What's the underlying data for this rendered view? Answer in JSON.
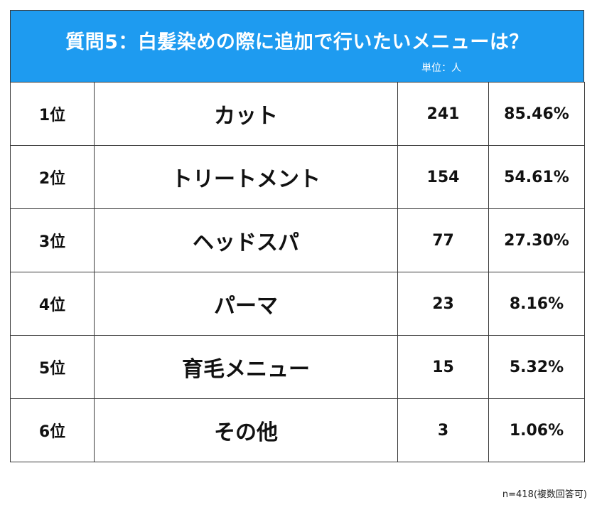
{
  "header": {
    "title": "質問5：白髪染めの際に追加で行いたいメニューは？",
    "unit": "単位：人"
  },
  "chart_data": {
    "type": "table",
    "title": "質問5：白髪染めの際に追加で行いたいメニューは？",
    "unit": "単位：人",
    "rows": [
      {
        "rank": "1位",
        "name": "カット",
        "count": "241",
        "percent": "85.46%"
      },
      {
        "rank": "2位",
        "name": "トリートメント",
        "count": "154",
        "percent": "54.61%"
      },
      {
        "rank": "3位",
        "name": "ヘッドスパ",
        "count": "77",
        "percent": "27.30%"
      },
      {
        "rank": "4位",
        "name": "パーマ",
        "count": "23",
        "percent": "8.16%"
      },
      {
        "rank": "5位",
        "name": "育毛メニュー",
        "count": "15",
        "percent": "5.32%"
      },
      {
        "rank": "6位",
        "name": "その他",
        "count": "3",
        "percent": "1.06%"
      }
    ],
    "footnote": "n=418(複数回答可)"
  },
  "colors": {
    "header_bg": "#1e9bf0",
    "header_text": "#ffffff",
    "border": "#3a3a3a"
  }
}
